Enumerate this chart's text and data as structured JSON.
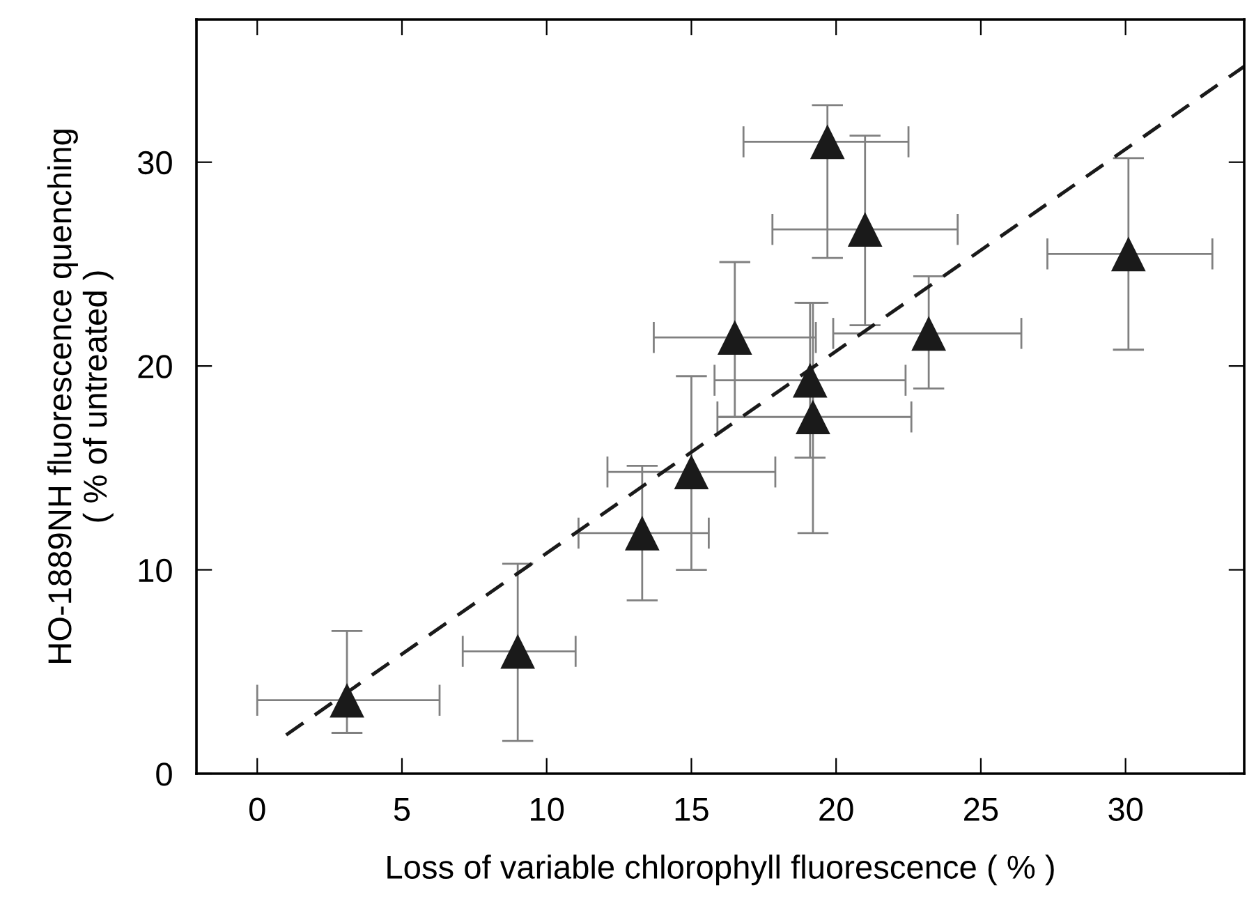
{
  "chart_data": {
    "type": "scatter",
    "xlabel": "Loss of variable chlorophyll fluorescence ( % )",
    "ylabel": "HO-1889NH fluorescence quenching\n( % of untreated )",
    "xlim": [
      -2.1,
      34.1
    ],
    "ylim": [
      0,
      37
    ],
    "xticks": [
      0,
      5,
      10,
      15,
      20,
      25,
      30
    ],
    "yticks": [
      0,
      10,
      20,
      30
    ],
    "grid": false,
    "legend": false,
    "series": [
      {
        "color": "#1a1a1a",
        "marker": "triangle",
        "x": [
          3.1,
          9.0,
          13.3,
          15.0,
          16.5,
          19.1,
          19.2,
          19.7,
          21.0,
          23.2,
          30.1
        ],
        "values": [
          3.6,
          6.0,
          11.8,
          14.8,
          21.4,
          19.3,
          17.5,
          31.0,
          26.7,
          21.6,
          25.5
        ],
        "errors": [
          [
            2.0,
            7.0
          ],
          [
            1.6,
            10.3
          ],
          [
            8.5,
            15.1
          ],
          [
            10.0,
            19.5
          ],
          [
            17.5,
            25.1
          ],
          [
            15.5,
            23.1
          ],
          [
            11.8,
            23.1
          ],
          [
            25.3,
            32.8
          ],
          [
            22.0,
            31.3
          ],
          [
            18.9,
            24.4
          ],
          [
            20.8,
            30.2
          ]
        ],
        "xerrors": [
          [
            0.0,
            6.3
          ],
          [
            7.1,
            11.0
          ],
          [
            11.1,
            15.6
          ],
          [
            12.1,
            17.9
          ],
          [
            13.7,
            19.3
          ],
          [
            15.8,
            22.4
          ],
          [
            15.9,
            22.6
          ],
          [
            16.8,
            22.5
          ],
          [
            17.8,
            24.2
          ],
          [
            19.9,
            26.4
          ],
          [
            27.3,
            33.0
          ]
        ]
      },
      {
        "type": "line",
        "color": "#1a1a1a",
        "line_style": "dashed",
        "marker": "none",
        "x": [
          1.0,
          34.1
        ],
        "values": [
          1.9,
          34.7
        ]
      }
    ]
  }
}
